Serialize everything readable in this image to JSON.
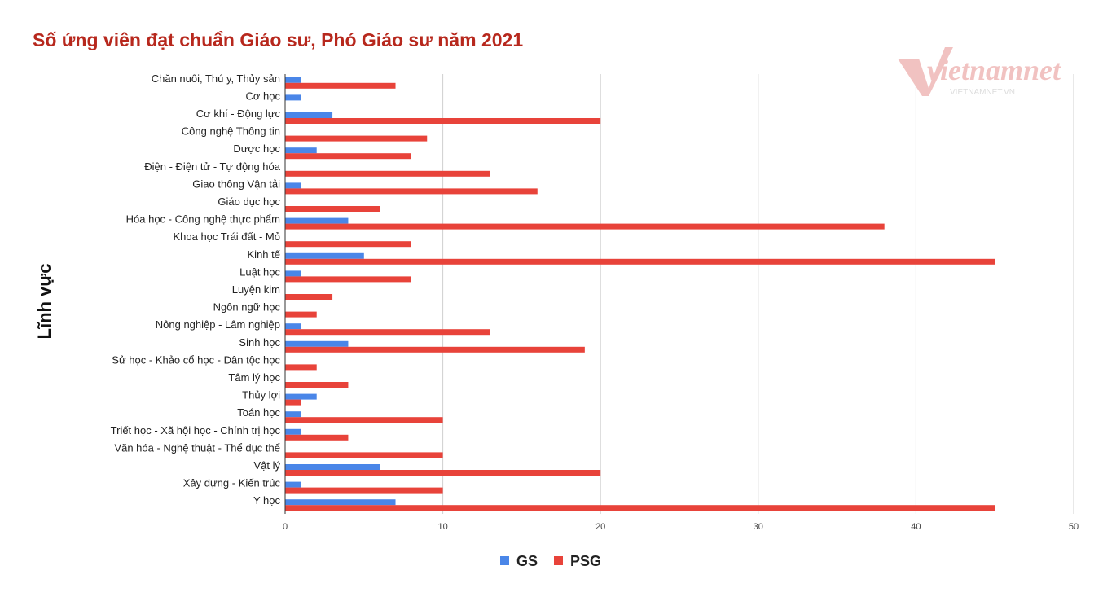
{
  "chart_data": {
    "type": "bar",
    "orientation": "horizontal",
    "title": "Số ứng viên đạt chuẩn Giáo sư, Phó Giáo sư năm 2021",
    "ylabel": "Lĩnh vực",
    "xlabel": "",
    "xlim": [
      0,
      50
    ],
    "x_ticks": [
      "0",
      "10",
      "20",
      "30",
      "40",
      "50"
    ],
    "grid": true,
    "legend_position": "bottom",
    "categories": [
      "Chăn nuôi, Thú y, Thủy sản",
      "Cơ học",
      "Cơ khí - Động lực",
      "Công nghệ Thông tin",
      "Dược học",
      "Điện - Điện tử - Tự động hóa",
      "Giao thông Vận tải",
      "Giáo dục học",
      "Hóa học - Công nghệ thực phẩm",
      "Khoa học Trái đất - Mỏ",
      "Kinh tế",
      "Luật học",
      "Luyện kim",
      "Ngôn ngữ học",
      "Nông nghiệp - Lâm nghiệp",
      "Sinh học",
      "Sử học - Khảo cổ học - Dân tộc học",
      "Tâm lý học",
      "Thủy lợi",
      "Toán học",
      "Triết học - Xã hội học - Chính trị học",
      "Văn hóa - Nghệ thuật - Thể dục thể",
      "Vật lý",
      "Xây dựng - Kiến trúc",
      "Y học"
    ],
    "series": [
      {
        "name": "GS",
        "color": "#4a86e8",
        "values": [
          1,
          1,
          3,
          0,
          2,
          0,
          1,
          0,
          4,
          0,
          5,
          1,
          0,
          0,
          1,
          4,
          0,
          0,
          2,
          1,
          1,
          0,
          6,
          1,
          7
        ]
      },
      {
        "name": "PSG",
        "color": "#e8433a",
        "values": [
          7,
          0,
          20,
          9,
          8,
          13,
          16,
          6,
          38,
          8,
          45,
          8,
          3,
          2,
          13,
          19,
          2,
          4,
          1,
          10,
          4,
          10,
          20,
          10,
          45
        ]
      }
    ]
  },
  "watermark": {
    "brand": "vietnamnet",
    "sub": "VIETNAMNET.VN"
  }
}
